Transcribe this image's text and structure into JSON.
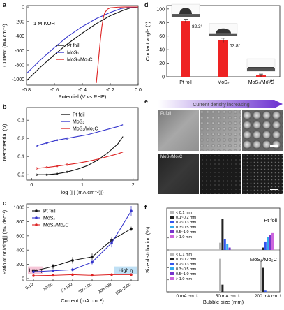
{
  "panels": {
    "a": {
      "letter": "a",
      "annotation": "1 M KOH"
    },
    "b": {
      "letter": "b"
    },
    "c": {
      "letter": "c",
      "low_label": "Low η",
      "high_label": "High η"
    },
    "d": {
      "letter": "d",
      "angles": [
        "82.3°",
        "53.8°",
        "~0°"
      ]
    },
    "e": {
      "letter": "e",
      "arrow_label": "Current density increasing",
      "row1_label": "Pt foil",
      "row2_label": "MoS₂/Mo₂C"
    },
    "f": {
      "letter": "f",
      "top_label": "Pt foil",
      "bottom_label": "MoS₂/Mo₂C"
    }
  },
  "chart_data": [
    {
      "id": "a",
      "type": "line",
      "xlabel": "Potential (V vs RHE)",
      "ylabel": "Current (mA cm⁻²)",
      "xlim": [
        -0.8,
        0.0
      ],
      "ylim": [
        -1080,
        20
      ],
      "xticks": [
        -0.8,
        -0.6,
        -0.4,
        -0.2,
        0.0
      ],
      "yticks": [
        0,
        -200,
        -400,
        -600,
        -800,
        -1000
      ],
      "legend": [
        "Pt foil",
        "MoS₂",
        "MoS₂/Mo₂C"
      ],
      "series": [
        {
          "name": "Pt foil",
          "color": "#111111",
          "x": [
            -0.8,
            -0.7,
            -0.6,
            -0.5,
            -0.4,
            -0.3,
            -0.2,
            -0.1,
            -0.05,
            0.0
          ],
          "y": [
            -1020,
            -830,
            -660,
            -500,
            -360,
            -230,
            -120,
            -40,
            -10,
            0
          ]
        },
        {
          "name": "MoS₂",
          "color": "#3333cc",
          "x": [
            -0.8,
            -0.7,
            -0.6,
            -0.5,
            -0.4,
            -0.3,
            -0.2,
            -0.12,
            -0.05,
            0.0
          ],
          "y": [
            -920,
            -730,
            -560,
            -400,
            -270,
            -160,
            -75,
            -20,
            -3,
            0
          ]
        },
        {
          "name": "MoS₂/Mo₂C",
          "color": "#dd2222",
          "x": [
            -0.3,
            -0.29,
            -0.28,
            -0.27,
            -0.26,
            -0.25,
            -0.24,
            -0.22,
            -0.2,
            -0.15,
            -0.1,
            0.0
          ],
          "y": [
            -1050,
            -850,
            -640,
            -440,
            -270,
            -150,
            -80,
            -30,
            -12,
            -3,
            0,
            0
          ]
        }
      ]
    },
    {
      "id": "b",
      "type": "line",
      "xlabel": "log (| j (mA cm⁻²)|)",
      "ylabel": "Overpotential (V)",
      "xlim": [
        -0.1,
        2.1
      ],
      "ylim": [
        -0.03,
        0.37
      ],
      "xticks": [
        0,
        1,
        2
      ],
      "yticks": [
        0.0,
        0.1,
        0.2,
        0.3
      ],
      "legend": [
        "Pt foil",
        "MoS₂",
        "MoS₂/Mo₂C"
      ],
      "series": [
        {
          "name": "Pt foil",
          "color": "#111111",
          "x": [
            0.1,
            0.3,
            0.5,
            0.7,
            0.9,
            1.1,
            1.3,
            1.5,
            1.7,
            1.8
          ],
          "y": [
            0.0,
            0.0,
            0.005,
            0.015,
            0.03,
            0.05,
            0.08,
            0.12,
            0.17,
            0.21
          ]
        },
        {
          "name": "MoS₂",
          "color": "#3333cc",
          "x": [
            0.1,
            0.3,
            0.5,
            0.7,
            0.9,
            1.1,
            1.3,
            1.5,
            1.7,
            1.8
          ],
          "y": [
            0.16,
            0.175,
            0.19,
            0.2,
            0.21,
            0.22,
            0.235,
            0.25,
            0.265,
            0.275
          ]
        },
        {
          "name": "MoS₂/Mo₂C",
          "color": "#dd2222",
          "x": [
            0.1,
            0.3,
            0.5,
            0.7,
            0.9,
            1.1,
            1.3,
            1.5,
            1.7,
            1.8
          ],
          "y": [
            0.035,
            0.04,
            0.047,
            0.055,
            0.063,
            0.073,
            0.085,
            0.1,
            0.115,
            0.125
          ]
        }
      ]
    },
    {
      "id": "c",
      "type": "line",
      "xlabel": "Current (mA cm⁻²)",
      "ylabel": "Ratio of Δη/Δlog|j| (mV dec⁻¹)",
      "ylim": [
        -30,
        1050
      ],
      "yticks": [
        0,
        200,
        400,
        600,
        800,
        1000
      ],
      "categories": [
        "0-10",
        "10-50",
        "50-100",
        "100-200",
        "200-500",
        "500-1000"
      ],
      "legend": [
        "Pt foil",
        "MoS₂",
        "MoS₂/Mo₂C"
      ],
      "series": [
        {
          "name": "Pt foil",
          "color": "#111111",
          "values": [
            105,
            170,
            255,
            305,
            540,
            700
          ],
          "errors": [
            25,
            35,
            45,
            45,
            35,
            30
          ]
        },
        {
          "name": "MoS₂",
          "color": "#3333cc",
          "values": [
            95,
            110,
            125,
            230,
            500,
            950
          ],
          "errors": [
            15,
            20,
            25,
            30,
            60,
            70
          ]
        },
        {
          "name": "MoS₂/Mo₂C",
          "color": "#dd2222",
          "values": [
            40,
            45,
            55,
            45,
            55,
            55
          ],
          "errors": [
            5,
            5,
            5,
            5,
            5,
            5
          ]
        }
      ]
    },
    {
      "id": "d",
      "type": "bar",
      "ylabel": "Contact angle (°)",
      "ylim": [
        0,
        105
      ],
      "yticks": [
        0,
        20,
        40,
        60,
        80,
        100
      ],
      "categories": [
        "Pt foil",
        "MoS₂",
        "MoS₂/Mo₂C"
      ],
      "values": [
        82.3,
        53.8,
        2
      ],
      "errors": [
        2.5,
        3,
        2
      ],
      "color": "#ee2222"
    },
    {
      "id": "f",
      "type": "bar",
      "ylabel": "Size distribution (%)",
      "xlabel": "Bubble size (mm)",
      "ylim": [
        0,
        65
      ],
      "yticks": [
        0,
        20,
        40,
        60
      ],
      "categories": [
        "0 mA cm⁻²",
        "50 mA cm⁻²",
        "200 mA cm⁻²"
      ],
      "legend": [
        "< 0.1 mm",
        "0.1~0.2 mm",
        "0.2~0.3 mm",
        "0.3~0.5 mm",
        "0.5~1.0 mm",
        "> 1.0 mm"
      ],
      "colors": [
        "#b8b8b8",
        "#222222",
        "#3355ee",
        "#33aaee",
        "#7733cc",
        "#cc66dd"
      ],
      "pt_series": [
        [
          0,
          0,
          0,
          0,
          0,
          0
        ],
        [
          12,
          52,
          18,
          10,
          4,
          0
        ],
        [
          0,
          4,
          14,
          22,
          25,
          28
        ]
      ],
      "mo_series": [
        [
          0,
          0,
          0,
          0,
          0,
          0
        ],
        [
          55,
          12,
          0,
          0,
          0,
          0
        ],
        [
          52,
          40,
          2,
          0,
          0,
          0
        ]
      ]
    }
  ]
}
